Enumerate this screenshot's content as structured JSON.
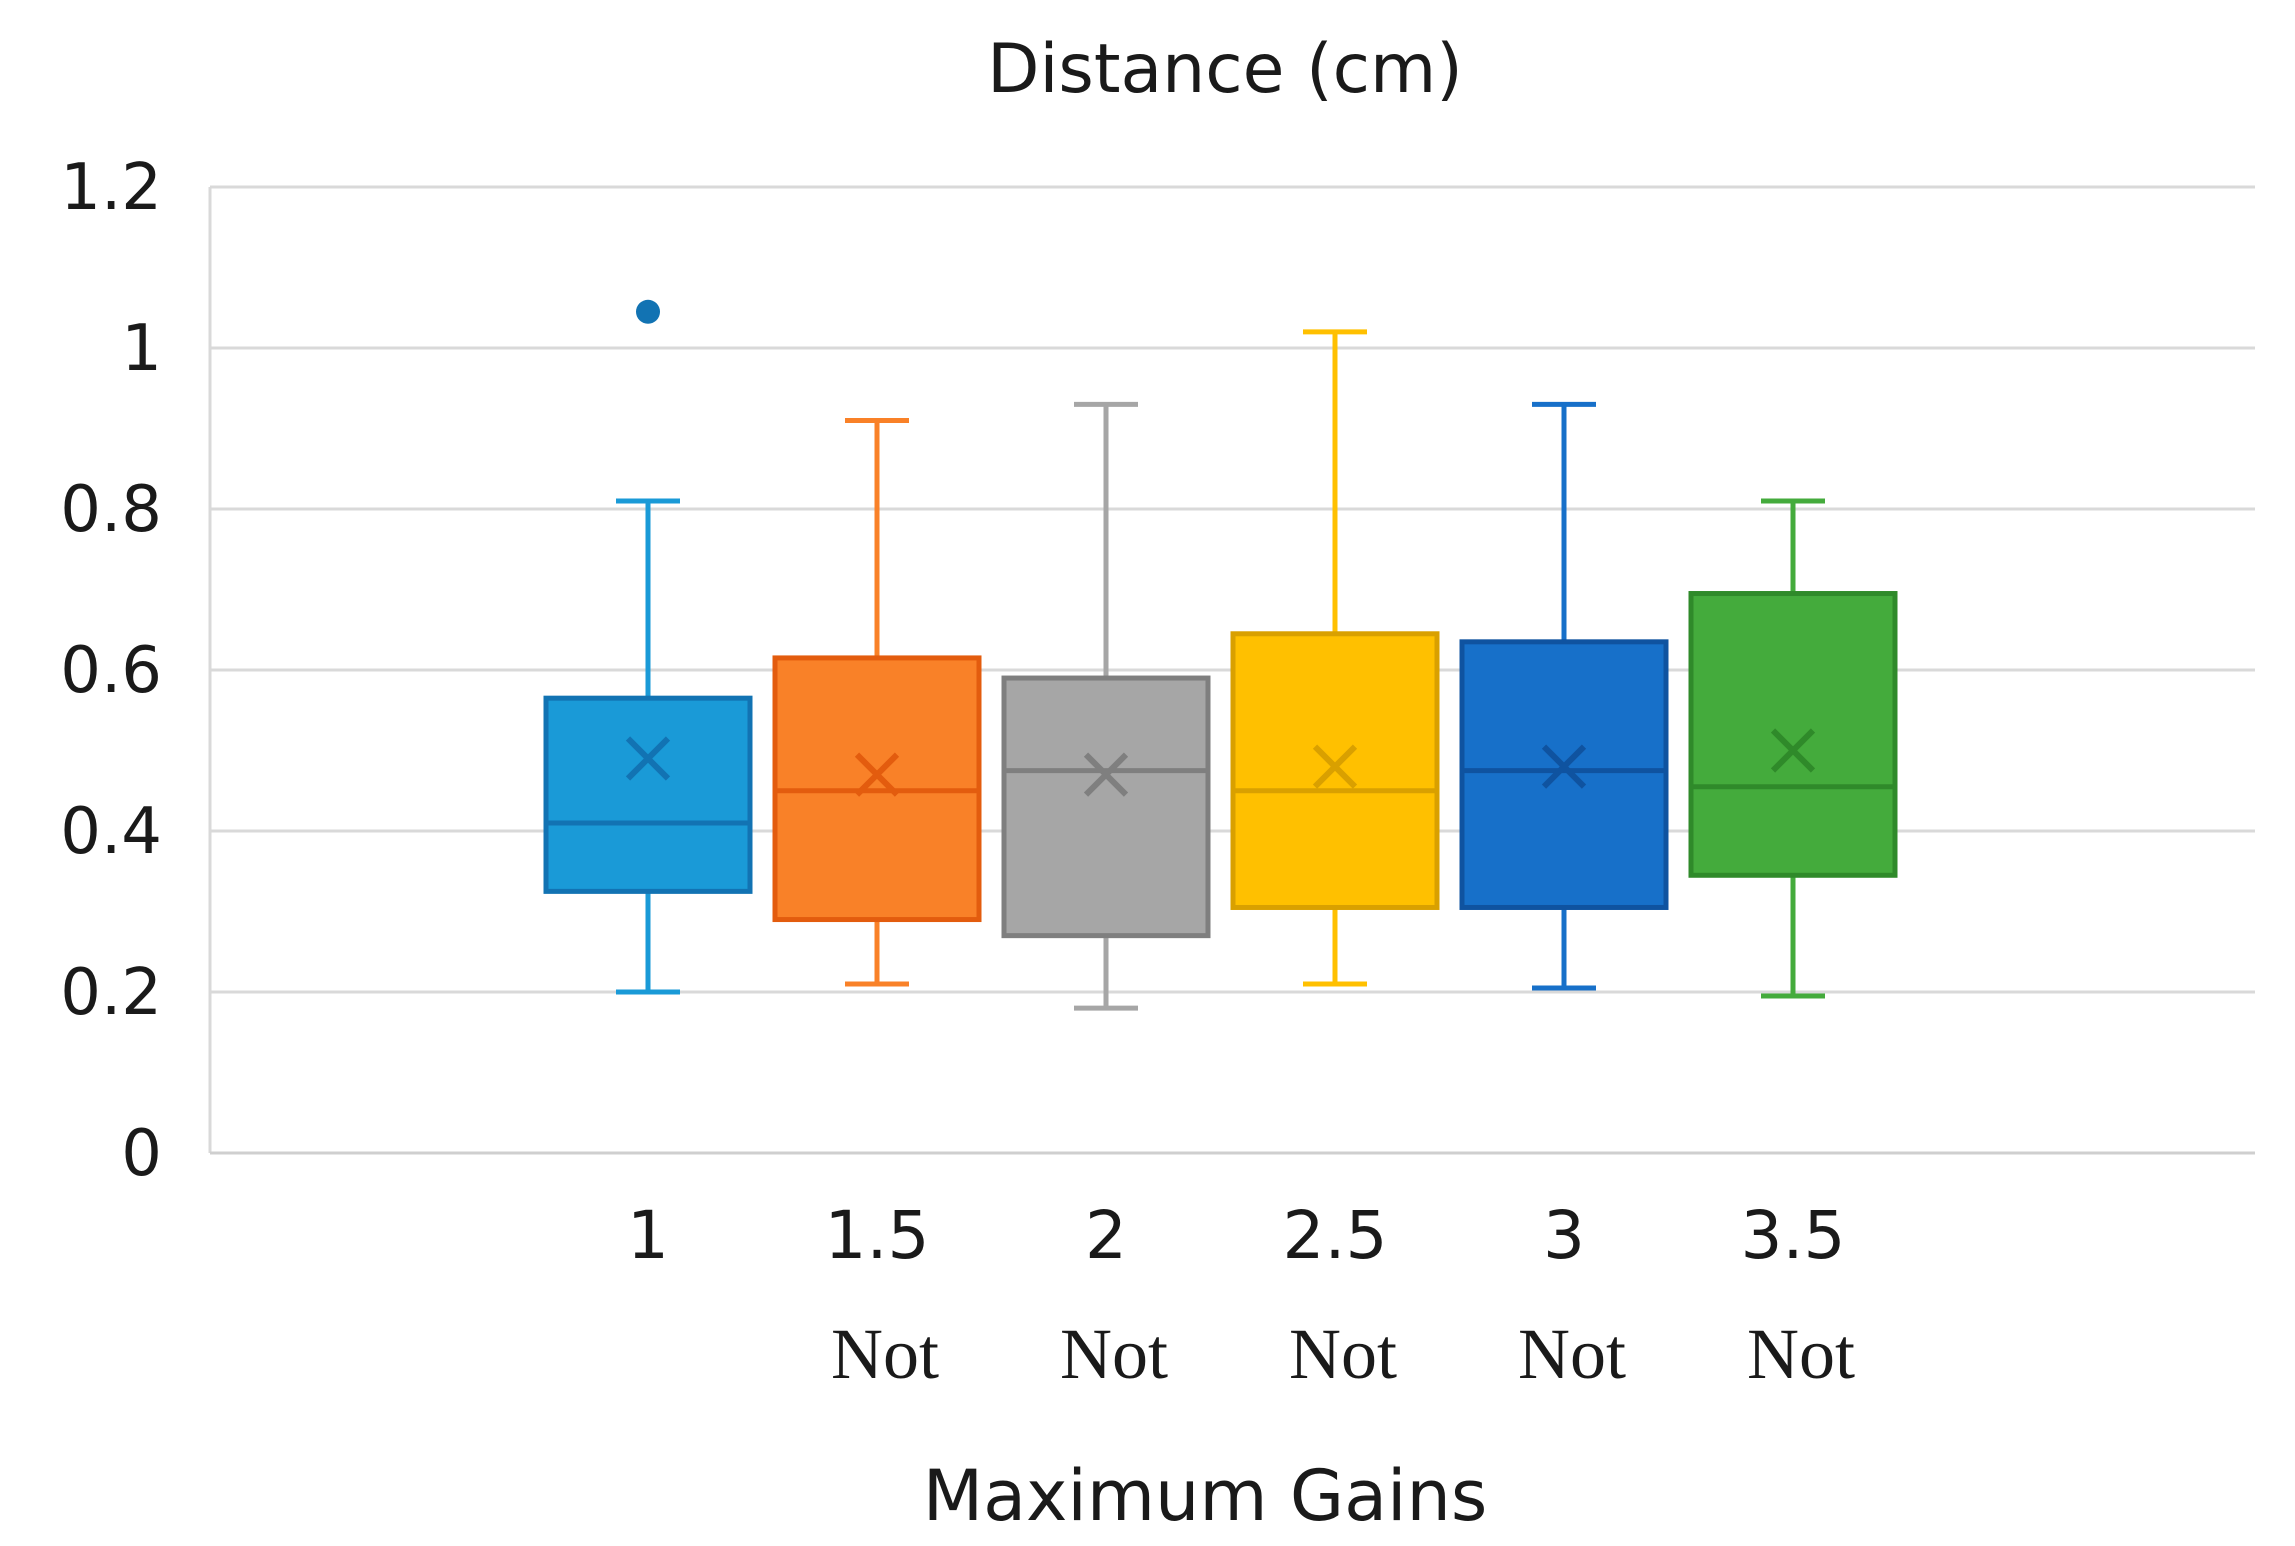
{
  "chart_data": {
    "type": "box",
    "title": "Distance (cm)",
    "xlabel": "Maximum Gains",
    "ylabel": "",
    "ylim": [
      0,
      1.2
    ],
    "yticks": [
      0,
      0.2,
      0.4,
      0.6,
      0.8,
      1,
      1.2
    ],
    "ytick_labels": [
      "0",
      "0.2",
      "0.4",
      "0.6",
      "0.8",
      "1",
      "1.2"
    ],
    "grid": true,
    "categories": [
      "1",
      "1.5",
      "2",
      "2.5",
      "3",
      "3.5"
    ],
    "category_notes": [
      "",
      "Not",
      "Not",
      "Not",
      "Not",
      "Not"
    ],
    "series": [
      {
        "name": "1",
        "color": "#1a9ad7",
        "stroke": "#1273b3",
        "min": 0.2,
        "q1": 0.325,
        "median": 0.41,
        "q3": 0.565,
        "max": 0.81,
        "mean": 0.49,
        "outliers": [
          1.045
        ]
      },
      {
        "name": "1.5",
        "color": "#f98128",
        "stroke": "#e35c0e",
        "min": 0.21,
        "q1": 0.29,
        "median": 0.45,
        "q3": 0.615,
        "max": 0.91,
        "mean": 0.47,
        "outliers": []
      },
      {
        "name": "2",
        "color": "#a6a6a6",
        "stroke": "#7f7f7f",
        "min": 0.18,
        "q1": 0.27,
        "median": 0.475,
        "q3": 0.59,
        "max": 0.93,
        "mean": 0.47,
        "outliers": []
      },
      {
        "name": "2.5",
        "color": "#ffc000",
        "stroke": "#d9a000",
        "min": 0.21,
        "q1": 0.305,
        "median": 0.45,
        "q3": 0.645,
        "max": 1.02,
        "mean": 0.48,
        "outliers": []
      },
      {
        "name": "3",
        "color": "#1770c9",
        "stroke": "#0f53a0",
        "min": 0.205,
        "q1": 0.305,
        "median": 0.475,
        "q3": 0.635,
        "max": 0.93,
        "mean": 0.48,
        "outliers": []
      },
      {
        "name": "3.5",
        "color": "#44ab3c",
        "stroke": "#2f8a2a",
        "min": 0.195,
        "q1": 0.345,
        "median": 0.455,
        "q3": 0.695,
        "max": 0.81,
        "mean": 0.5,
        "outliers": []
      }
    ]
  }
}
